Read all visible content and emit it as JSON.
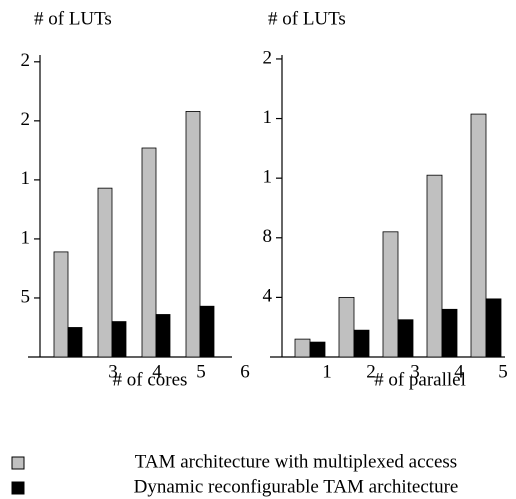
{
  "chart_data": [
    {
      "type": "bar",
      "title": "# of LUTs",
      "x_label": "# of cores",
      "categories": [
        "3",
        "4",
        "5",
        "6"
      ],
      "series": [
        {
          "name": "TAM architecture with multiplexed access",
          "color": "#c0c0c0",
          "values": [
            8.9,
            14.3,
            17.7,
            20.8
          ]
        },
        {
          "name": "Dynamic reconfigurable TAM architecture",
          "color": "#000000",
          "values": [
            2.5,
            3.0,
            3.6,
            4.3
          ]
        }
      ],
      "ylim": [
        0,
        26
      ],
      "yticks": [
        5,
        {
          "value": 10,
          "label": "1"
        },
        {
          "value": 15,
          "label": "1"
        },
        {
          "value": 20,
          "label": "2"
        },
        {
          "value": 25,
          "label": "2"
        }
      ]
    },
    {
      "type": "bar",
      "title": "# of LUTs",
      "x_label": "# of parallel",
      "categories": [
        "1",
        "2",
        "3",
        "4",
        "5"
      ],
      "series": [
        {
          "color": "#c0c0c0",
          "values": [
            1.2,
            4.0,
            8.4,
            12.2,
            16.3
          ]
        },
        {
          "color": "#000000",
          "values": [
            1.0,
            1.8,
            2.5,
            3.2,
            3.9
          ]
        }
      ],
      "ylim": [
        0,
        20.6
      ],
      "yticks": [
        4,
        8,
        {
          "value": 12,
          "label": "1"
        },
        {
          "value": 16,
          "label": "1"
        },
        {
          "value": 20,
          "label": "2"
        }
      ]
    }
  ]
}
